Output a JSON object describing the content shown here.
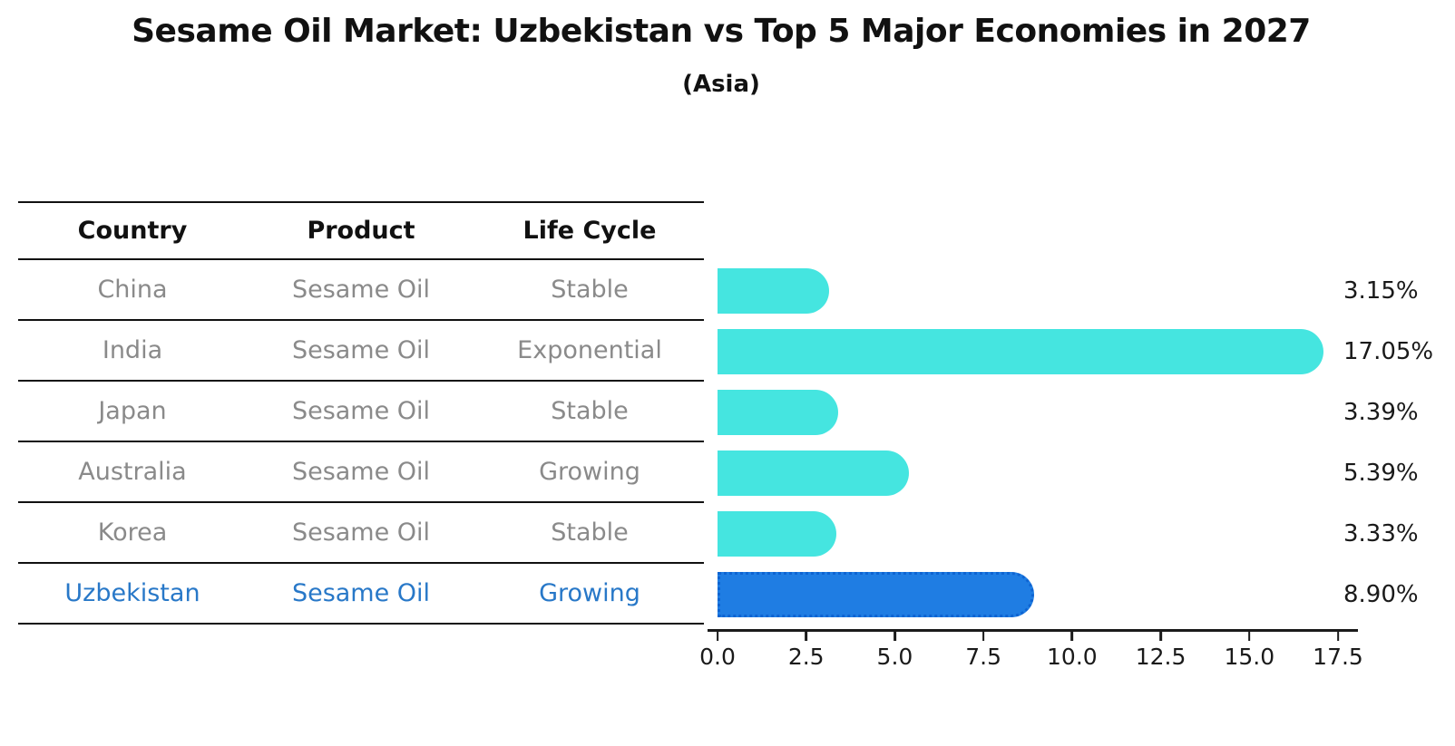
{
  "title": "Sesame Oil Market: Uzbekistan vs Top 5 Major Economies in 2027",
  "subtitle": "(Asia)",
  "table": {
    "headers": {
      "country": "Country",
      "product": "Product",
      "life_cycle": "Life Cycle"
    },
    "rows": [
      {
        "country": "China",
        "product": "Sesame Oil",
        "life_cycle": "Stable"
      },
      {
        "country": "India",
        "product": "Sesame Oil",
        "life_cycle": "Exponential"
      },
      {
        "country": "Japan",
        "product": "Sesame Oil",
        "life_cycle": "Stable"
      },
      {
        "country": "Australia",
        "product": "Sesame Oil",
        "life_cycle": "Growing"
      },
      {
        "country": "Korea",
        "product": "Sesame Oil",
        "life_cycle": "Stable"
      },
      {
        "country": "Uzbekistan",
        "product": "Sesame Oil",
        "life_cycle": "Growing"
      }
    ]
  },
  "chart_data": {
    "type": "bar",
    "orientation": "horizontal",
    "title": "Sesame Oil Market: Uzbekistan vs Top 5 Major Economies in 2027",
    "subtitle": "(Asia)",
    "categories": [
      "China",
      "India",
      "Japan",
      "Australia",
      "Korea",
      "Uzbekistan"
    ],
    "values": [
      3.15,
      17.05,
      3.39,
      5.39,
      3.33,
      8.9
    ],
    "value_labels": [
      "3.15%",
      "17.05%",
      "3.39%",
      "5.39%",
      "3.33%",
      "8.90%"
    ],
    "xlim": [
      0,
      17.5
    ],
    "x_tick_labels": [
      "0.0",
      "2.5",
      "5.0",
      "7.5",
      "10.0",
      "12.5",
      "15.0",
      "17.5"
    ],
    "grid": false,
    "legend": false,
    "highlight_index": 5,
    "bar_color": "#45E5E0",
    "highlight_bar_color": "#1F7DE3",
    "highlight_border_color": "#0E64D2",
    "highlight_text_color": "#2878C8"
  }
}
